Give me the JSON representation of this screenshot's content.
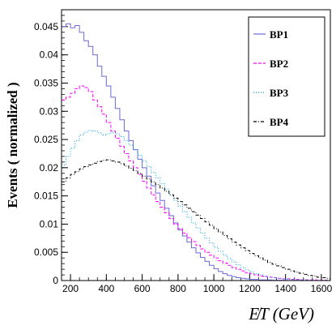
{
  "chart_data": {
    "type": "line",
    "style": "step-histogram",
    "xlabel": "E̸T (GeV)",
    "ylabel": "Events ( normalized )",
    "xlim": [
      150,
      1650
    ],
    "ylim": [
      0,
      0.048
    ],
    "x_ticks": [
      200,
      400,
      600,
      800,
      1000,
      1200,
      1400,
      1600
    ],
    "y_ticks": [
      0,
      0.005,
      0.01,
      0.015,
      0.02,
      0.025,
      0.03,
      0.035,
      0.04,
      0.045
    ],
    "x_tick_labels": [
      "200",
      "400",
      "600",
      "800",
      "1000",
      "1200",
      "1400",
      "1600"
    ],
    "y_tick_labels": [
      "0",
      "0.005",
      "0.01",
      "0.015",
      "0.02",
      "0.025",
      "0.03",
      "0.035",
      "0.04",
      "0.045"
    ],
    "bin_edges": [
      150,
      1650
    ],
    "bin_width": 25,
    "legend_position": "top-right",
    "series": [
      {
        "name": "BP1",
        "color": "#6a6ad8",
        "dash": "solid",
        "values": [
          0.045,
          0.0455,
          0.0448,
          0.0452,
          0.044,
          0.0425,
          0.0415,
          0.04,
          0.038,
          0.0362,
          0.0345,
          0.0325,
          0.0305,
          0.0285,
          0.0265,
          0.0248,
          0.0232,
          0.0215,
          0.02,
          0.0185,
          0.0168,
          0.0155,
          0.0142,
          0.0128,
          0.0115,
          0.0102,
          0.009,
          0.0079,
          0.0068,
          0.0058,
          0.0049,
          0.0041,
          0.0034,
          0.0027,
          0.0021,
          0.0016,
          0.0012,
          0.0009,
          0.0007,
          0.0005,
          0.0004,
          0.0003,
          0.0002,
          0.0002,
          0.0001,
          0.0001,
          0.0001,
          5e-05,
          5e-05,
          5e-05,
          2e-05,
          2e-05,
          1e-05,
          1e-05,
          0.0,
          0.0,
          0.0,
          0.0,
          0.0,
          0.0
        ]
      },
      {
        "name": "BP2",
        "color": "#ff00ff",
        "dash": "dashed",
        "values": [
          0.032,
          0.0325,
          0.0332,
          0.034,
          0.0345,
          0.0342,
          0.0335,
          0.032,
          0.0308,
          0.0295,
          0.028,
          0.0265,
          0.0252,
          0.0238,
          0.0225,
          0.0212,
          0.02,
          0.0188,
          0.0176,
          0.0164,
          0.0152,
          0.014,
          0.013,
          0.012,
          0.011,
          0.01,
          0.0092,
          0.0084,
          0.0076,
          0.0069,
          0.0062,
          0.0056,
          0.005,
          0.0045,
          0.004,
          0.0035,
          0.0031,
          0.0027,
          0.0023,
          0.002,
          0.0017,
          0.0014,
          0.0012,
          0.001,
          0.0008,
          0.0007,
          0.0006,
          0.0005,
          0.0004,
          0.0003,
          0.0003,
          0.0002,
          0.0002,
          0.0001,
          0.0001,
          0.0001,
          0.0001,
          5e-05,
          5e-05,
          5e-05
        ]
      },
      {
        "name": "BP3",
        "color": "#00a0e0",
        "dash": "dotted",
        "values": [
          0.0205,
          0.022,
          0.0235,
          0.0248,
          0.0258,
          0.0263,
          0.0266,
          0.0265,
          0.0262,
          0.0258,
          0.026,
          0.0262,
          0.026,
          0.0255,
          0.0248,
          0.024,
          0.0232,
          0.0222,
          0.0212,
          0.0202,
          0.0192,
          0.0182,
          0.0172,
          0.0162,
          0.0152,
          0.0142,
          0.0132,
          0.0122,
          0.0112,
          0.0102,
          0.0093,
          0.0084,
          0.0075,
          0.0067,
          0.0059,
          0.0052,
          0.0045,
          0.0039,
          0.0033,
          0.0028,
          0.0023,
          0.0019,
          0.0015,
          0.0012,
          0.001,
          0.0008,
          0.0006,
          0.0005,
          0.0004,
          0.0003,
          0.0002,
          0.0002,
          0.0001,
          0.0001,
          0.0001,
          5e-05,
          5e-05,
          2e-05,
          2e-05,
          2e-05
        ]
      },
      {
        "name": "BP4",
        "color": "#000000",
        "dash": "dashdot",
        "values": [
          0.0175,
          0.0182,
          0.0188,
          0.0193,
          0.0198,
          0.0202,
          0.0205,
          0.0208,
          0.0211,
          0.0213,
          0.0214,
          0.0212,
          0.021,
          0.0207,
          0.0203,
          0.0199,
          0.0195,
          0.019,
          0.0185,
          0.018,
          0.0175,
          0.017,
          0.0164,
          0.0158,
          0.0152,
          0.0146,
          0.014,
          0.0134,
          0.0128,
          0.0122,
          0.0116,
          0.011,
          0.0104,
          0.0098,
          0.0092,
          0.0086,
          0.008,
          0.0074,
          0.0068,
          0.0063,
          0.0058,
          0.0053,
          0.0048,
          0.0044,
          0.004,
          0.0036,
          0.0032,
          0.0029,
          0.0026,
          0.0023,
          0.002,
          0.0017,
          0.0015,
          0.0013,
          0.0011,
          0.0009,
          0.0008,
          0.0006,
          0.0005,
          0.0004
        ]
      }
    ]
  }
}
